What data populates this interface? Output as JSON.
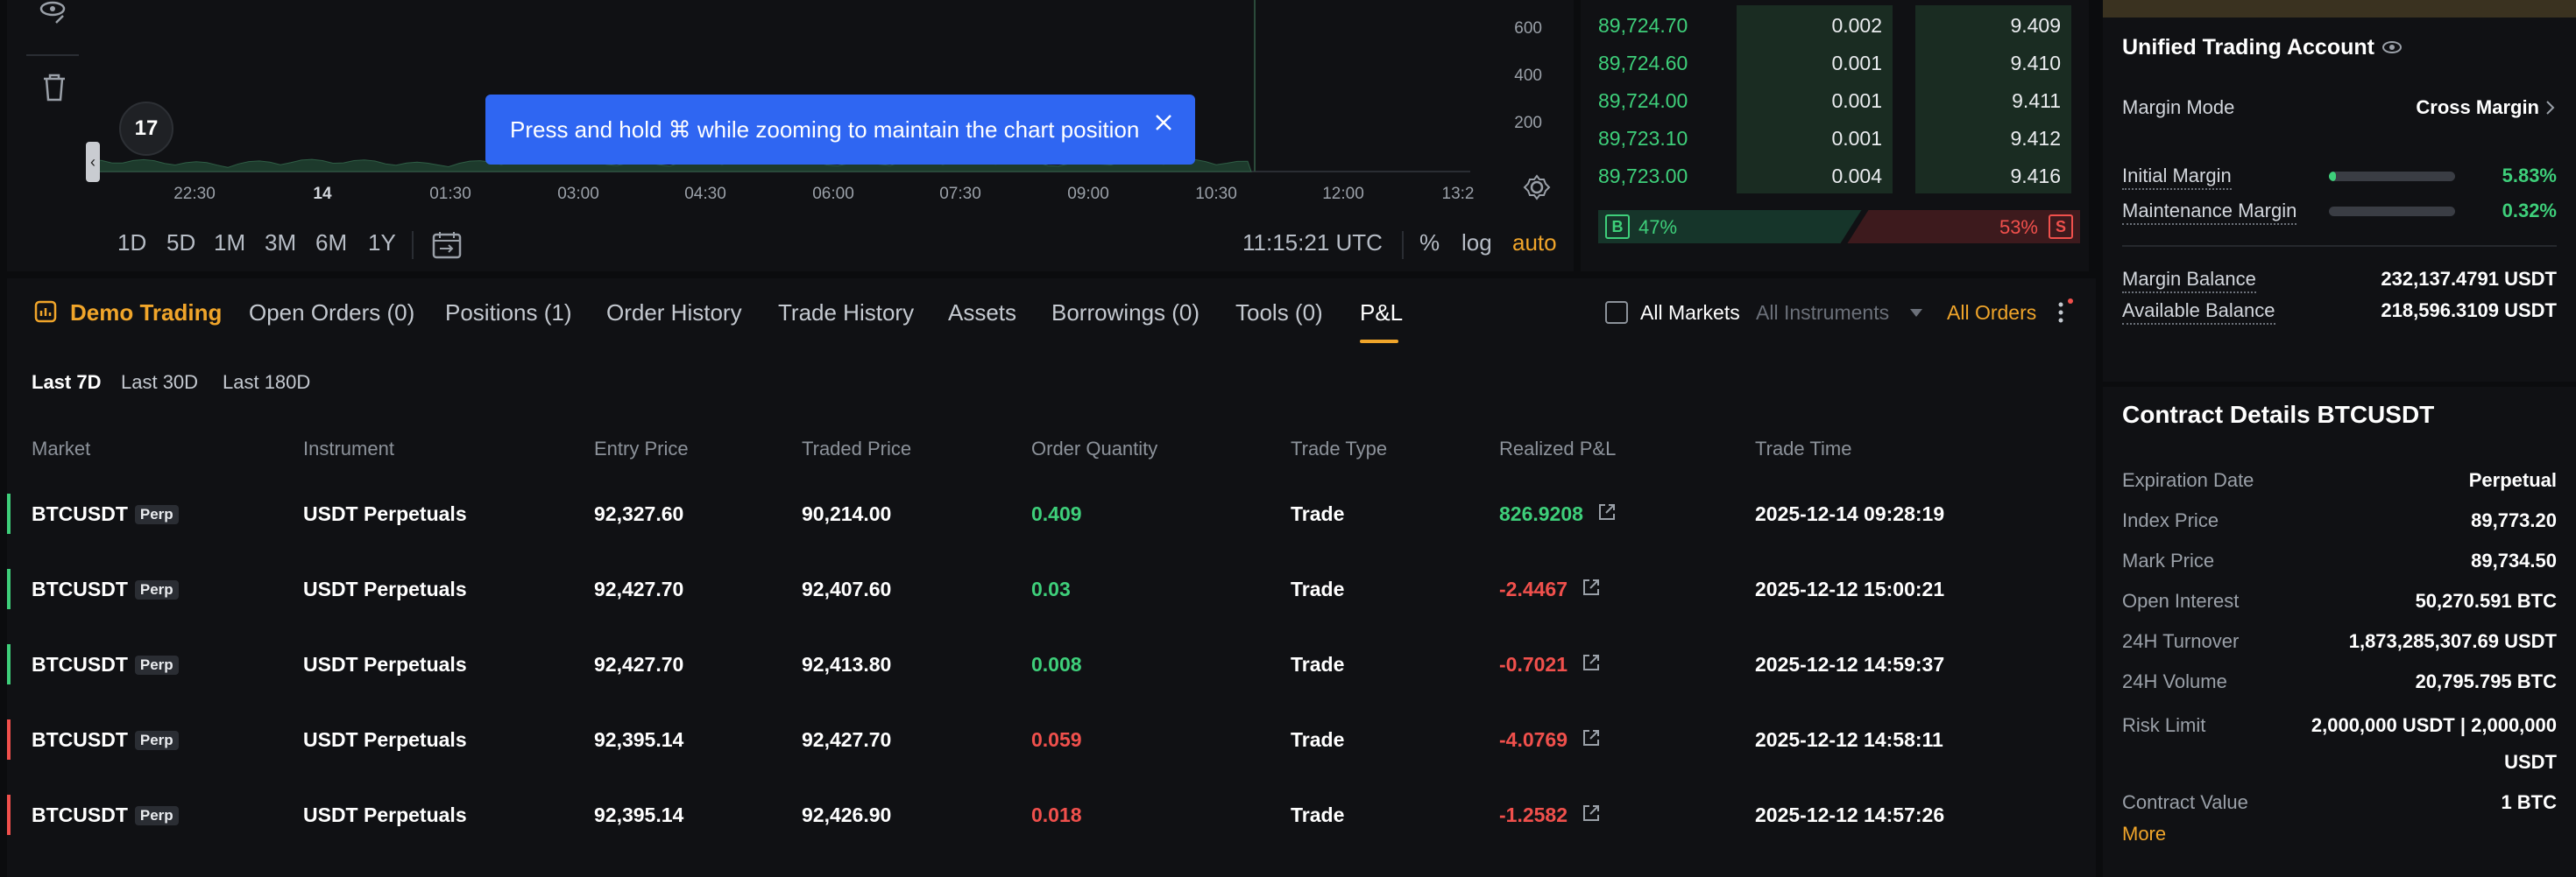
{
  "chart": {
    "price_ticks": [
      "600",
      "400",
      "200"
    ],
    "time_ticks": [
      "22:30",
      "14",
      "01:30",
      "03:00",
      "04:30",
      "06:00",
      "07:30",
      "09:00",
      "10:30",
      "12:00",
      "13:2"
    ],
    "ranges": [
      "1D",
      "5D",
      "1M",
      "3M",
      "6M",
      "1Y"
    ],
    "clock": "11:15:21 UTC",
    "scale_options": {
      "percent": "%",
      "log": "log",
      "auto": "auto"
    },
    "toast": "Press and hold ⌘ while zooming to maintain the chart position",
    "logo_text": "17",
    "collapse_glyph": "‹",
    "accent": "#f0a52a"
  },
  "orderbook": {
    "rows": [
      {
        "price": "89,724.70",
        "qty": "0.002",
        "total": "9.409"
      },
      {
        "price": "89,724.60",
        "qty": "0.001",
        "total": "9.410"
      },
      {
        "price": "89,724.00",
        "qty": "0.001",
        "total": "9.411"
      },
      {
        "price": "89,723.10",
        "qty": "0.001",
        "total": "9.412"
      },
      {
        "price": "89,723.00",
        "qty": "0.004",
        "total": "9.416"
      }
    ],
    "buy_label": "B",
    "sell_label": "S",
    "buy_pct": "47%",
    "sell_pct": "53%",
    "buy_ratio": 0.47
  },
  "account": {
    "title": "Unified Trading Account",
    "margin_mode_label": "Margin Mode",
    "margin_mode_value": "Cross Margin",
    "initial_margin_label": "Initial Margin",
    "initial_margin_value": "5.83%",
    "initial_margin_ratio": 0.0583,
    "maintenance_margin_label": "Maintenance Margin",
    "maintenance_margin_value": "0.32%",
    "maintenance_margin_ratio": 0.0032,
    "margin_balance_label": "Margin Balance",
    "margin_balance_value": "232,137.4791 USDT",
    "available_balance_label": "Available Balance",
    "available_balance_value": "218,596.3109 USDT"
  },
  "contract": {
    "title": "Contract Details BTCUSDT",
    "rows": [
      {
        "label": "Expiration Date",
        "value": "Perpetual"
      },
      {
        "label": "Index Price",
        "value": "89,773.20"
      },
      {
        "label": "Mark Price",
        "value": "89,734.50"
      },
      {
        "label": "Open Interest",
        "value": "50,270.591 BTC"
      },
      {
        "label": "24H Turnover",
        "value": "1,873,285,307.69 USDT"
      },
      {
        "label": "24H Volume",
        "value": "20,795.795 BTC"
      }
    ],
    "risk_limit_label": "Risk Limit",
    "risk_limit_value_1": "2,000,000 USDT | 2,000,000",
    "risk_limit_value_2": "USDT",
    "contract_value_label": "Contract Value",
    "contract_value_value": "1 BTC",
    "more": "More"
  },
  "bottom": {
    "tabs": {
      "demo": "Demo Trading",
      "open_orders": "Open Orders (0)",
      "positions": "Positions (1)",
      "order_history": "Order History",
      "trade_history": "Trade History",
      "assets": "Assets",
      "borrowings": "Borrowings (0)",
      "tools": "Tools (0)",
      "pnl": "P&L"
    },
    "all_markets": "All Markets",
    "all_instruments": "All Instruments",
    "all_orders": "All Orders",
    "periods": [
      "Last 7D",
      "Last 30D",
      "Last 180D"
    ],
    "columns": [
      "Market",
      "Instrument",
      "Entry Price",
      "Traded Price",
      "Order Quantity",
      "Trade Type",
      "Realized P&L",
      "Trade Time"
    ],
    "perp_badge": "Perp",
    "rows": [
      {
        "market": "BTCUSDT",
        "instrument": "USDT Perpetuals",
        "entry": "92,327.60",
        "traded": "90,214.00",
        "qty": "0.409",
        "type": "Trade",
        "pnl": "826.9208",
        "time": "2025-12-14 09:28:19",
        "side": "buy"
      },
      {
        "market": "BTCUSDT",
        "instrument": "USDT Perpetuals",
        "entry": "92,427.70",
        "traded": "92,407.60",
        "qty": "0.03",
        "type": "Trade",
        "pnl": "-2.4467",
        "time": "2025-12-12 15:00:21",
        "side": "buy"
      },
      {
        "market": "BTCUSDT",
        "instrument": "USDT Perpetuals",
        "entry": "92,427.70",
        "traded": "92,413.80",
        "qty": "0.008",
        "type": "Trade",
        "pnl": "-0.7021",
        "time": "2025-12-12 14:59:37",
        "side": "buy"
      },
      {
        "market": "BTCUSDT",
        "instrument": "USDT Perpetuals",
        "entry": "92,395.14",
        "traded": "92,427.70",
        "qty": "0.059",
        "type": "Trade",
        "pnl": "-4.0769",
        "time": "2025-12-12 14:58:11",
        "side": "sell"
      },
      {
        "market": "BTCUSDT",
        "instrument": "USDT Perpetuals",
        "entry": "92,395.14",
        "traded": "92,426.90",
        "qty": "0.018",
        "type": "Trade",
        "pnl": "-1.2582",
        "time": "2025-12-12 14:57:26",
        "side": "sell"
      }
    ],
    "colors": {
      "buy": "#3ecf7a",
      "sell": "#f0504c"
    }
  }
}
